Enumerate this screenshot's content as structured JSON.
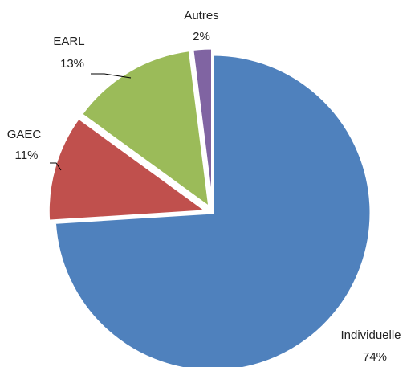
{
  "chart_data": {
    "type": "pie",
    "categories": [
      "Individuelle",
      "GAEC",
      "EARL",
      "Autres"
    ],
    "values": [
      74,
      11,
      13,
      2
    ],
    "value_labels": [
      "74%",
      "11%",
      "13%",
      "2%"
    ],
    "colors": [
      "#4f81bd",
      "#c0504d",
      "#9bbb59",
      "#8064a2"
    ]
  }
}
